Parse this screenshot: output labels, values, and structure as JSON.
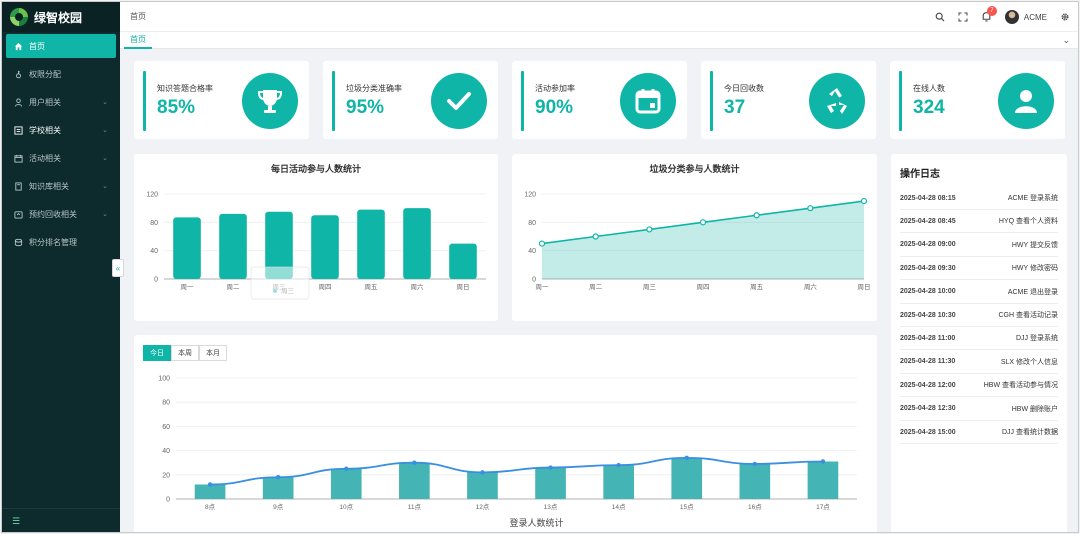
{
  "app": {
    "name": "绿智校园"
  },
  "sidebar": {
    "items": [
      {
        "label": "首页",
        "icon": "home-icon",
        "active": true
      },
      {
        "label": "权限分配",
        "icon": "key-icon"
      },
      {
        "label": "用户相关",
        "icon": "user-icon",
        "chevron": true
      },
      {
        "label": "学校相关",
        "icon": "school-icon",
        "chevron": true
      },
      {
        "label": "活动相关",
        "icon": "calendar-icon",
        "chevron": true
      },
      {
        "label": "知识库相关",
        "icon": "book-icon",
        "chevron": true
      },
      {
        "label": "预约回收相关",
        "icon": "recycle-icon",
        "chevron": true
      },
      {
        "label": "积分排名管理",
        "icon": "ranking-icon"
      }
    ],
    "collapse_glyph": "«"
  },
  "header": {
    "breadcrumb": "首页",
    "notification_count": "7",
    "user_name": "ACME"
  },
  "tabs": [
    {
      "label": "首页"
    }
  ],
  "stats": [
    {
      "label": "知识答题合格率",
      "value": "85%",
      "icon": "trophy-icon"
    },
    {
      "label": "垃圾分类准确率",
      "value": "95%",
      "icon": "check-icon"
    },
    {
      "label": "活动参加率",
      "value": "90%",
      "icon": "calendar-icon"
    },
    {
      "label": "今日回收数",
      "value": "37",
      "icon": "recycle-icon"
    },
    {
      "label": "在线人数",
      "value": "324",
      "icon": "user-icon"
    }
  ],
  "log": {
    "title": "操作日志",
    "entries": [
      {
        "time": "2025-04-28 08:15",
        "text": "ACME 登录系统"
      },
      {
        "time": "2025-04-28 08:45",
        "text": "HYQ 查看个人资料"
      },
      {
        "time": "2025-04-28 09:00",
        "text": "HWY 提交反馈"
      },
      {
        "time": "2025-04-28 09:30",
        "text": "HWY 修改密码"
      },
      {
        "time": "2025-04-28 10:00",
        "text": "ACME 退出登录"
      },
      {
        "time": "2025-04-28 10:30",
        "text": "CGH 查看活动记录"
      },
      {
        "time": "2025-04-28 11:00",
        "text": "DJJ 登录系统"
      },
      {
        "time": "2025-04-28 11:30",
        "text": "SLX 修改个人信息"
      },
      {
        "time": "2025-04-28 12:00",
        "text": "HBW 查看活动参与情况"
      },
      {
        "time": "2025-04-28 12:30",
        "text": "HBW 删除账户"
      },
      {
        "time": "2025-04-28 15:00",
        "text": "DJJ 查看统计数据"
      }
    ]
  },
  "range_buttons": [
    {
      "label": "今日",
      "active": true
    },
    {
      "label": "本周"
    },
    {
      "label": "本月"
    }
  ],
  "colors": {
    "accent": "#0fb5a7",
    "sidebar": "#0d2a2c",
    "line": "#3b8fe0"
  },
  "chart_data": [
    {
      "type": "bar",
      "title": "每日活动参与人数统计",
      "categories": [
        "周一",
        "周二",
        "周三",
        "周四",
        "周五",
        "周六",
        "周日"
      ],
      "values": [
        87,
        92,
        95,
        90,
        98,
        100,
        50
      ],
      "ylim": [
        0,
        120
      ],
      "yticks": [
        0,
        40,
        80,
        120
      ],
      "tooltip_label": "周三"
    },
    {
      "type": "area",
      "title": "垃圾分类参与人数统计",
      "categories": [
        "周一",
        "周二",
        "周三",
        "周四",
        "周五",
        "周六",
        "周日"
      ],
      "values": [
        50,
        60,
        70,
        80,
        90,
        100,
        110
      ],
      "ylim": [
        0,
        120
      ],
      "yticks": [
        0,
        40,
        80,
        120
      ]
    },
    {
      "type": "bar",
      "title": "",
      "xlabel": "登录人数统计",
      "categories": [
        "8点",
        "9点",
        "10点",
        "11点",
        "12点",
        "13点",
        "14点",
        "15点",
        "16点",
        "17点"
      ],
      "series": [
        {
          "name": "bar",
          "type": "bar",
          "values": [
            12,
            18,
            25,
            30,
            22,
            26,
            28,
            34,
            29,
            31
          ]
        },
        {
          "name": "line",
          "type": "line",
          "values": [
            12,
            18,
            25,
            30,
            22,
            26,
            28,
            34,
            29,
            31
          ]
        }
      ],
      "ylim": [
        0,
        100
      ],
      "yticks": [
        0,
        20,
        40,
        60,
        80,
        100
      ]
    }
  ]
}
